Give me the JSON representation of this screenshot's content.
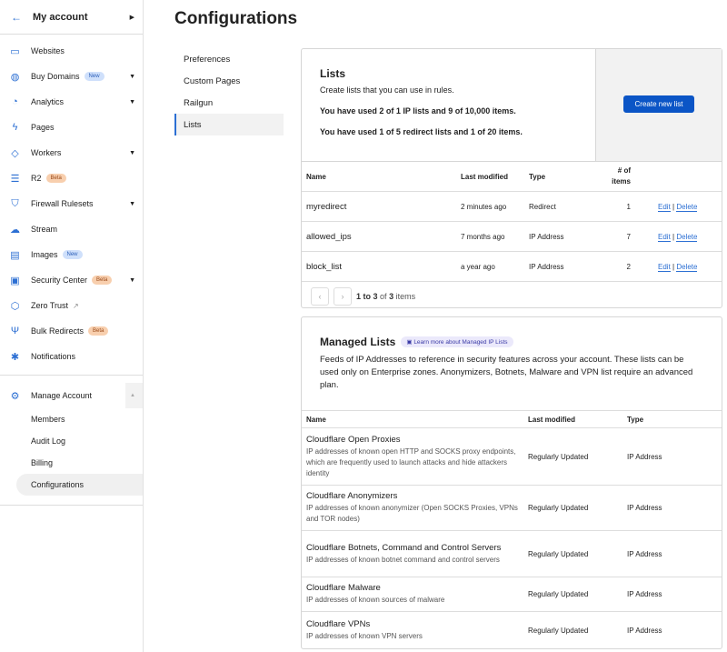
{
  "sidebar": {
    "account": "My account",
    "items": [
      {
        "label": "Websites",
        "icon": "browser-icon"
      },
      {
        "label": "Buy Domains",
        "icon": "globe-icon",
        "badge": "New",
        "badge_type": "new",
        "caret": true
      },
      {
        "label": "Analytics",
        "icon": "chart-pie-icon",
        "caret": true
      },
      {
        "label": "Pages",
        "icon": "lightning-icon"
      },
      {
        "label": "Workers",
        "icon": "workers-icon",
        "caret": true
      },
      {
        "label": "R2",
        "icon": "database-icon",
        "badge": "Beta",
        "badge_type": "beta"
      },
      {
        "label": "Firewall Rulesets",
        "icon": "shield-icon",
        "caret": true
      },
      {
        "label": "Stream",
        "icon": "cloud-play-icon"
      },
      {
        "label": "Images",
        "icon": "image-icon",
        "badge": "New",
        "badge_type": "new"
      },
      {
        "label": "Security Center",
        "icon": "security-center-icon",
        "badge": "Beta",
        "badge_type": "beta",
        "caret": true
      },
      {
        "label": "Zero Trust",
        "icon": "zero-trust-icon",
        "external": true
      },
      {
        "label": "Bulk Redirects",
        "icon": "redirect-icon",
        "badge": "Beta",
        "badge_type": "beta"
      },
      {
        "label": "Notifications",
        "icon": "notifications-icon"
      }
    ],
    "manage": "Manage Account",
    "sub": [
      "Members",
      "Audit Log",
      "Billing",
      "Configurations"
    ],
    "active_sub": "Configurations"
  },
  "page_title": "Configurations",
  "subnav": [
    "Preferences",
    "Custom Pages",
    "Railgun",
    "Lists"
  ],
  "lists": {
    "title": "Lists",
    "desc": "Create lists that you can use in rules.",
    "usage1": "You have used 2 of 1 IP lists and 9 of 10,000 items.",
    "usage2": "You have used 1 of 5 redirect lists and 1 of 20 items.",
    "create": "Create new list",
    "headers": [
      "Name",
      "Last modified",
      "Type",
      "# of items"
    ],
    "rows": [
      {
        "name": "myredirect",
        "modified": "2 minutes ago",
        "type": "Redirect",
        "count": "1"
      },
      {
        "name": "allowed_ips",
        "modified": "7 months ago",
        "type": "IP Address",
        "count": "7"
      },
      {
        "name": "block_list",
        "modified": "a year ago",
        "type": "IP Address",
        "count": "2"
      }
    ],
    "edit": "Edit",
    "sep": "|",
    "delete": "Delete",
    "pag_range": "1 to 3",
    "pag_of": "of",
    "pag_total": "3",
    "pag_items": "items"
  },
  "managed": {
    "title": "Managed Lists",
    "learn": "Learn more about Managed IP Lists",
    "desc": "Feeds of IP Addresses to reference in security features across your account. These lists can be used only on Enterprise zones. Anonymizers, Botnets, Malware and VPN list require an advanced plan.",
    "headers": [
      "Name",
      "Last modified",
      "Type"
    ],
    "rows": [
      {
        "name": "Cloudflare Open Proxies",
        "desc": "IP addresses of known open HTTP and SOCKS proxy endpoints, which are frequently used to launch attacks and hide attackers identity",
        "modified": "Regularly Updated",
        "type": "IP Address"
      },
      {
        "name": "Cloudflare Anonymizers",
        "desc": "IP addresses of known anonymizer (Open SOCKS Proxies, VPNs and TOR nodes)",
        "modified": "Regularly Updated",
        "type": "IP Address"
      },
      {
        "name": "Cloudflare Botnets, Command and Control Servers",
        "desc": "IP addresses of known botnet command and control servers",
        "modified": "Regularly Updated",
        "type": "IP Address"
      },
      {
        "name": "Cloudflare Malware",
        "desc": "IP addresses of known sources of malware",
        "modified": "Regularly Updated",
        "type": "IP Address"
      },
      {
        "name": "Cloudflare VPNs",
        "desc": "IP addresses of known VPN servers",
        "modified": "Regularly Updated",
        "type": "IP Address"
      }
    ]
  }
}
